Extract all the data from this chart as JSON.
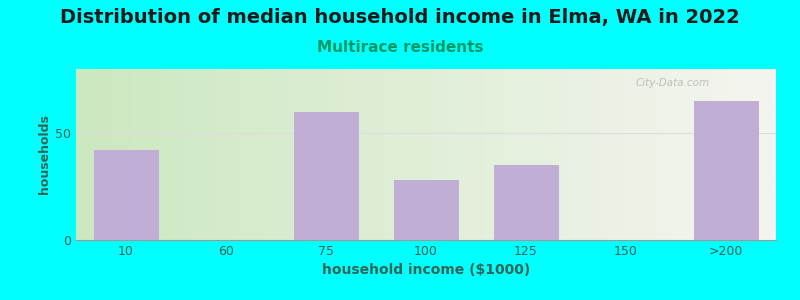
{
  "title": "Distribution of median household income in Elma, WA in 2022",
  "subtitle": "Multirace residents",
  "xlabel": "household income ($1000)",
  "ylabel": "households",
  "background_outer": "#00FFFF",
  "bar_color": "#c0aed4",
  "watermark": "City-Data.com",
  "categories": [
    "10",
    "60",
    "75",
    "100",
    "125",
    "150",
    ">200"
  ],
  "bar_positions": [
    0,
    1,
    2,
    3,
    4,
    5,
    6
  ],
  "values": [
    42,
    0,
    60,
    28,
    35,
    0,
    65
  ],
  "ylim": [
    0,
    80
  ],
  "yticks": [
    0,
    50
  ],
  "title_fontsize": 14,
  "subtitle_fontsize": 11,
  "xlabel_fontsize": 10,
  "ylabel_fontsize": 9,
  "tick_fontsize": 9,
  "title_color": "#1a1a1a",
  "subtitle_color": "#009966",
  "label_color": "#336655",
  "tick_color": "#336655",
  "grid_color": "#dddddd",
  "watermark_color": "#aaaaaa",
  "gradient_left": "#cce8c0",
  "gradient_right": "#f5f5f0"
}
